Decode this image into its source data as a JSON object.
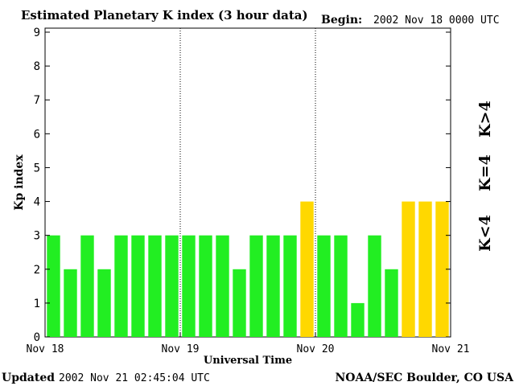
{
  "header": {
    "title": "Estimated Planetary K index (3 hour data)",
    "begin_label": "Begin:",
    "begin_value": "2002 Nov 18 0000 UTC"
  },
  "footer": {
    "updated_label": "Updated",
    "updated_value": "2002 Nov 21 02:45:04 UTC",
    "source": "NOAA/SEC Boulder, CO USA"
  },
  "legend": {
    "low": "K<4",
    "mid": "K=4",
    "high": "K>4"
  },
  "colors": {
    "low": "#22ee22",
    "mid": "#ffd800",
    "high": "#ff2200",
    "axis": "#000000"
  },
  "chart_data": {
    "type": "bar",
    "title": "Estimated Planetary K index (3 hour data)",
    "xlabel": "Universal Time",
    "ylabel": "Kp index",
    "ylim": [
      0,
      9
    ],
    "yticks": [
      "0",
      "1",
      "2",
      "3",
      "4",
      "5",
      "6",
      "7",
      "8",
      "9"
    ],
    "xticks": [
      "Nov 18",
      "Nov 19",
      "Nov 20",
      "Nov 21"
    ],
    "bars_per_day": 8,
    "values": [
      3,
      2,
      3,
      2,
      3,
      3,
      3,
      3,
      3,
      3,
      3,
      2,
      3,
      3,
      3,
      4,
      3,
      3,
      1,
      3,
      2,
      4,
      4,
      4
    ],
    "day_separators": "dotted"
  }
}
